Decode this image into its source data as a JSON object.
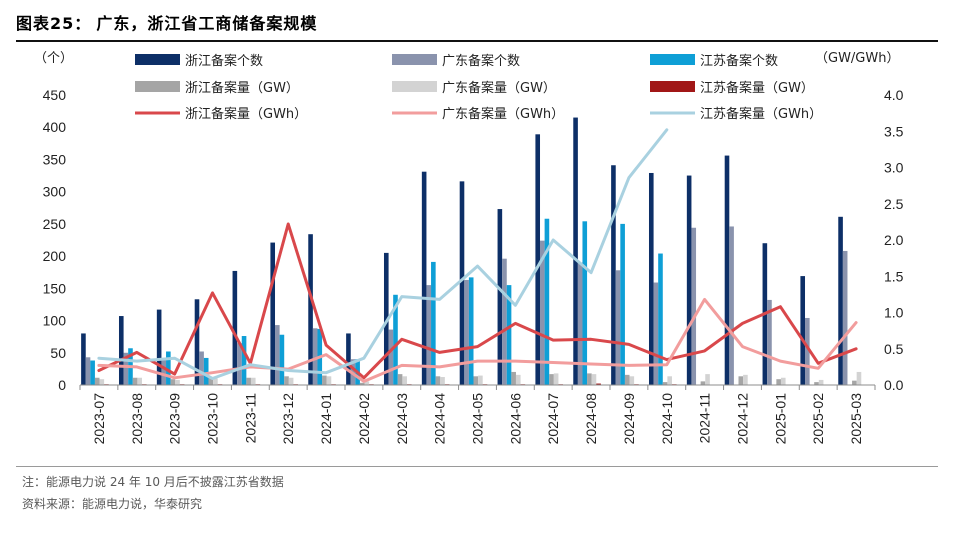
{
  "header": {
    "figure_no": "图表25：",
    "title": "广东，浙江省工商储备案规模"
  },
  "footer": {
    "note": "注：能源电力说 24 年 10 月后不披露江苏省数据",
    "source": "资料来源：能源电力说，华泰研究"
  },
  "chart_data": {
    "type": "bar",
    "left_unit": "（个）",
    "right_unit": "（GW/GWh）",
    "categories": [
      "2023-07",
      "2023-08",
      "2023-09",
      "2023-10",
      "2023-11",
      "2023-12",
      "2024-01",
      "2024-02",
      "2024-03",
      "2024-04",
      "2024-05",
      "2024-06",
      "2024-07",
      "2024-08",
      "2024-09",
      "2024-10",
      "2024-11",
      "2024-12",
      "2025-01",
      "2025-02",
      "2025-03"
    ],
    "ylim_left": [
      0,
      450
    ],
    "yticks_left": [
      "0",
      "50",
      "100",
      "150",
      "200",
      "250",
      "300",
      "350",
      "400",
      "450"
    ],
    "ylim_right": [
      0,
      4.0
    ],
    "yticks_right": [
      "0.0",
      "0.5",
      "1.0",
      "1.5",
      "2.0",
      "2.5",
      "3.0",
      "3.5",
      "4.0"
    ],
    "series": [
      {
        "name": "浙江备案个数",
        "kind": "bar",
        "axis": "left",
        "color": "#0d2f67",
        "values": [
          80,
          107,
          117,
          133,
          177,
          221,
          234,
          80,
          205,
          331,
          316,
          273,
          389,
          415,
          341,
          329,
          325,
          356,
          220,
          169,
          261
        ]
      },
      {
        "name": "广东备案个数",
        "kind": "bar",
        "axis": "left",
        "color": "#8a93ad",
        "values": [
          43,
          50,
          40,
          52,
          65,
          93,
          88,
          40,
          86,
          155,
          163,
          196,
          224,
          190,
          178,
          159,
          244,
          246,
          132,
          104,
          208
        ]
      },
      {
        "name": "江苏备案个数",
        "kind": "bar",
        "axis": "left",
        "color": "#0e9fd6",
        "values": [
          38,
          57,
          52,
          42,
          76,
          78,
          87,
          40,
          140,
          191,
          167,
          155,
          258,
          254,
          250,
          204,
          null,
          null,
          null,
          null,
          null
        ]
      },
      {
        "name": "浙江备案量（GW）",
        "kind": "bar",
        "axis": "right",
        "color": "#a5a5a5",
        "values": [
          0.1,
          0.1,
          0.08,
          0.1,
          0.1,
          0.12,
          0.13,
          0.03,
          0.15,
          0.12,
          0.12,
          0.18,
          0.15,
          0.16,
          0.14,
          0.04,
          0.05,
          0.12,
          0.08,
          0.04,
          0.06
        ]
      },
      {
        "name": "广东备案量（GW）",
        "kind": "bar",
        "axis": "right",
        "color": "#d3d3d3",
        "values": [
          0.08,
          0.1,
          0.07,
          0.09,
          0.1,
          0.1,
          0.12,
          0.05,
          0.12,
          0.11,
          0.13,
          0.14,
          0.16,
          0.15,
          0.12,
          0.12,
          0.15,
          0.14,
          0.1,
          0.07,
          0.18
        ]
      },
      {
        "name": "江苏备案量（GW）",
        "kind": "bar",
        "axis": "right",
        "color": "#a11717",
        "values": [
          0.01,
          0.01,
          0.01,
          0.01,
          0.01,
          0.01,
          0.01,
          0.01,
          0.01,
          0.01,
          0.01,
          0.01,
          0.01,
          0.02,
          0.01,
          0.01,
          null,
          null,
          null,
          null,
          null
        ]
      },
      {
        "name": "浙江备案量（GWh）",
        "kind": "line",
        "axis": "right",
        "color": "#d9484b",
        "values": [
          0.2,
          0.45,
          0.15,
          1.27,
          0.3,
          2.22,
          0.55,
          0.1,
          0.63,
          0.45,
          0.53,
          0.85,
          0.62,
          0.63,
          0.56,
          0.35,
          0.47,
          0.85,
          1.08,
          0.3,
          0.5
        ]
      },
      {
        "name": "广东备案量（GWh）",
        "kind": "line",
        "axis": "right",
        "color": "#f29d9d",
        "values": [
          0.27,
          0.25,
          0.1,
          0.17,
          0.25,
          0.22,
          0.42,
          0.05,
          0.27,
          0.25,
          0.33,
          0.33,
          0.31,
          0.29,
          0.27,
          0.28,
          1.18,
          0.53,
          0.33,
          0.23,
          0.86
        ]
      },
      {
        "name": "江苏备案量（GWh）",
        "kind": "line",
        "axis": "right",
        "color": "#a9d1e0",
        "values": [
          0.37,
          0.33,
          0.37,
          0.09,
          0.28,
          0.2,
          0.17,
          0.37,
          1.22,
          1.18,
          1.64,
          1.1,
          2.0,
          1.55,
          2.86,
          3.52,
          null,
          null,
          null,
          null,
          null
        ]
      }
    ]
  }
}
